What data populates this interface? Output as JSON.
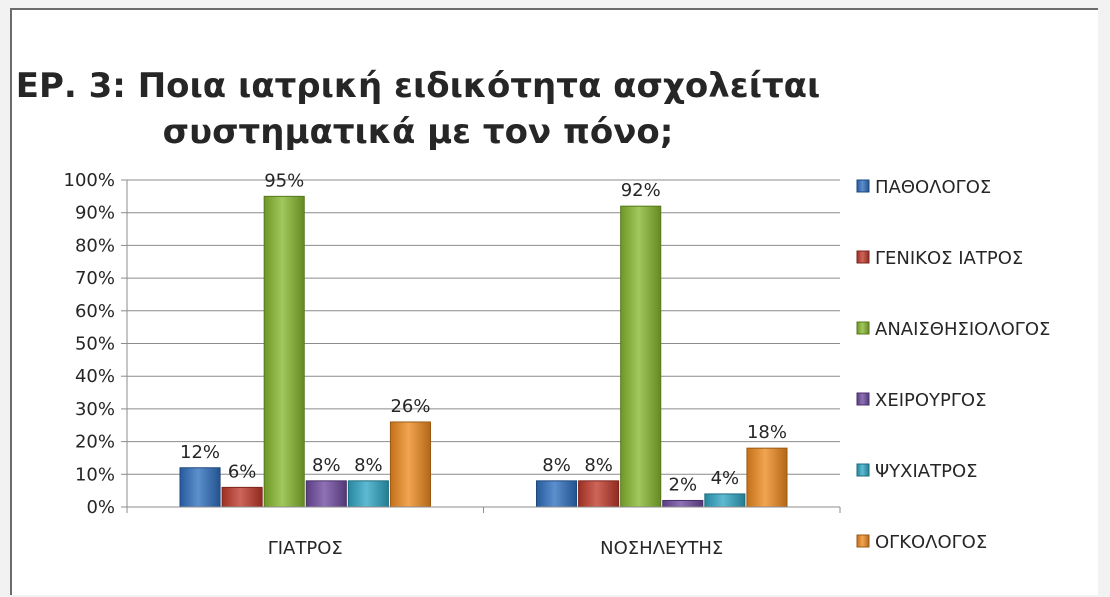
{
  "chart_data": {
    "type": "bar",
    "title_lines": [
      "ΕΡ. 3: Ποια ιατρική ειδικότητα ασχολείται",
      "συστηματικά με τον πόνο;"
    ],
    "categories": [
      "ΓΙΑΤΡΟΣ",
      "ΝΟΣΗΛΕΥΤΗΣ"
    ],
    "series": [
      {
        "name": "ΠΑΘΟΛΟΓΟΣ",
        "values": [
          12,
          8
        ],
        "labels": [
          "12%",
          "8%"
        ],
        "color": "#2e6fbf"
      },
      {
        "name": "ΓΕΝΙΚΟΣ ΙΑΤΡΟΣ",
        "values": [
          6,
          8
        ],
        "labels": [
          "6%",
          "8%"
        ],
        "color": "#c0392b"
      },
      {
        "name": "ΑΝΑΙΣΘΗΣΙΟΛΟΓΟΣ",
        "values": [
          95,
          92
        ],
        "labels": [
          "95%",
          "92%"
        ],
        "color": "#86b82e"
      },
      {
        "name": "ΧΕΙΡΟΥΡΓΟΣ",
        "values": [
          8,
          2
        ],
        "labels": [
          "8%",
          "2%"
        ],
        "color": "#6f4aa0"
      },
      {
        "name": "ΨΥΧΙΑΤΡΟΣ",
        "values": [
          8,
          4
        ],
        "labels": [
          "8%",
          "4%"
        ],
        "color": "#2fa6c4"
      },
      {
        "name": "ΟΓΚΟΛΟΓΟΣ",
        "values": [
          26,
          18
        ],
        "labels": [
          "26%",
          "18%"
        ],
        "color": "#ee8a1f"
      }
    ],
    "y_ticks": [
      "0%",
      "10%",
      "20%",
      "30%",
      "40%",
      "50%",
      "60%",
      "70%",
      "80%",
      "90%",
      "100%"
    ],
    "ylim": [
      0,
      100
    ],
    "grid": true,
    "legend_position": "right"
  }
}
